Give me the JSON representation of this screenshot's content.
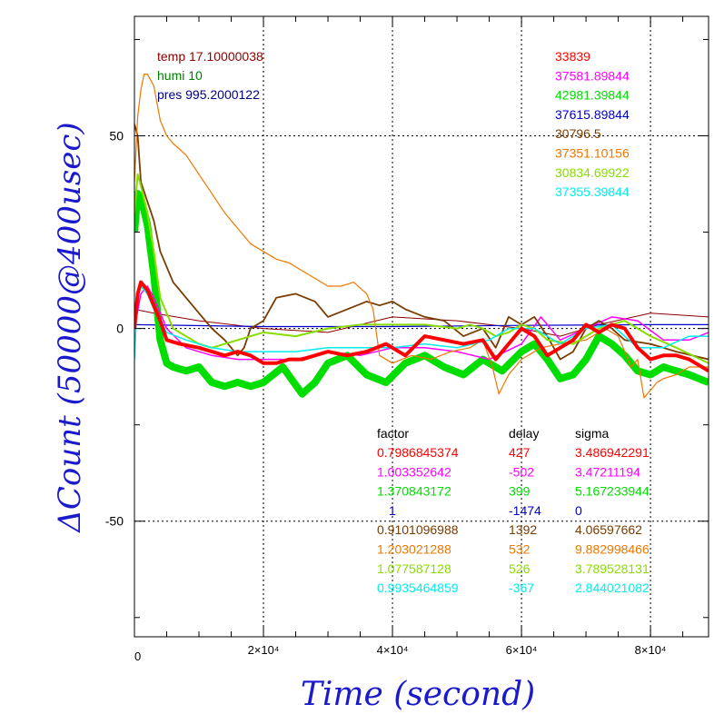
{
  "chart_data": {
    "type": "line",
    "xlabel": "Time (second)",
    "ylabel": "ΔCount (50000@400usec)",
    "xlim": [
      0,
      89000
    ],
    "ylim": [
      -80,
      81
    ],
    "grid": true,
    "x_ticks": [
      {
        "value": 0,
        "label": "0"
      },
      {
        "value": 20000,
        "label": "2×10⁴"
      },
      {
        "value": 40000,
        "label": "4×10⁴"
      },
      {
        "value": 60000,
        "label": "6×10⁴"
      },
      {
        "value": 80000,
        "label": "8×10⁴"
      }
    ],
    "y_ticks": [
      {
        "value": 50,
        "label": "50"
      },
      {
        "value": 0,
        "label": "0"
      },
      {
        "value": -50,
        "label": "-50"
      }
    ],
    "env": [
      {
        "text": "temp 17.10000038",
        "color": "#8b0000"
      },
      {
        "text": "humi 10",
        "color": "#008000"
      },
      {
        "text": "pres 995.2000122",
        "color": "#00008b"
      }
    ],
    "means": [
      {
        "text": "33839",
        "color": "#ff0000"
      },
      {
        "text": "37581.89844",
        "color": "#ff00ff"
      },
      {
        "text": "42981.39844",
        "color": "#00dd00"
      },
      {
        "text": "37615.89844",
        "color": "#0000cc"
      },
      {
        "text": "30796.5",
        "color": "#7a3c00"
      },
      {
        "text": "37351.10156",
        "color": "#ee7700"
      },
      {
        "text": "30834.69922",
        "color": "#88dd00"
      },
      {
        "text": "37355.39844",
        "color": "#00eeee"
      }
    ],
    "table": {
      "headers": [
        "factor",
        "delay",
        "sigma"
      ],
      "rows": [
        {
          "factor": "0.7986845374",
          "delay": "427",
          "sigma": "3.486942291",
          "color": "#ff0000"
        },
        {
          "factor": "1.003352642",
          "delay": "-502",
          "sigma": "3.47211194",
          "color": "#ff00ff"
        },
        {
          "factor": "1.370843172",
          "delay": "399",
          "sigma": "5.167233944",
          "color": "#00dd00"
        },
        {
          "factor": "1",
          "delay": "-1474",
          "sigma": "0",
          "color": "#0000cc"
        },
        {
          "factor": "0.9101096988",
          "delay": "1392",
          "sigma": "4.06597662",
          "color": "#7a3c00"
        },
        {
          "factor": "1.203021288",
          "delay": "532",
          "sigma": "9.882998466",
          "color": "#ee7700"
        },
        {
          "factor": "1.077587128",
          "delay": "526",
          "sigma": "3.789528131",
          "color": "#88dd00"
        },
        {
          "factor": "0.9935464859",
          "delay": "-367",
          "sigma": "2.844021082",
          "color": "#00eeee"
        }
      ]
    },
    "series": [
      {
        "color": "#8b0000",
        "width": 1,
        "x": [
          0,
          3000,
          10000,
          20000,
          30000,
          40000,
          50000,
          60000,
          66000,
          72000,
          80000,
          89000
        ],
        "y": [
          5,
          4,
          2,
          0,
          -1,
          3,
          2,
          0,
          -2,
          1,
          4,
          3
        ]
      },
      {
        "color": "#0000cc",
        "width": 1.2,
        "x": [
          0,
          20000,
          40000,
          60000,
          80000,
          89000
        ],
        "y": [
          1,
          0.5,
          0.5,
          0.8,
          1,
          1
        ]
      },
      {
        "color": "#00dd00",
        "width": 8,
        "x": [
          0,
          500,
          1000,
          2000,
          3000,
          4000,
          5000,
          6000,
          8000,
          10000,
          12000,
          14000,
          16000,
          18000,
          20000,
          23000,
          26000,
          28000,
          30000,
          33000,
          36000,
          39000,
          42000,
          45000,
          48000,
          51000,
          54000,
          57000,
          60000,
          62000,
          64000,
          66000,
          68000,
          70000,
          72000,
          74000,
          76000,
          78000,
          80000,
          82000,
          84000,
          86000,
          89000
        ],
        "y": [
          25,
          35,
          34,
          27,
          14,
          -3,
          -9,
          -10,
          -11,
          -10,
          -14,
          -15,
          -14,
          -15,
          -14,
          -10,
          -17,
          -14,
          -9,
          -7,
          -12,
          -14,
          -9,
          -7,
          -10,
          -12,
          -8,
          -11,
          -6,
          -4,
          -8,
          -13,
          -12,
          -8,
          -2,
          -4,
          -7,
          -11,
          -12,
          -10,
          -11,
          -12,
          -14
        ]
      },
      {
        "color": "#ff00ff",
        "width": 1.5,
        "x": [
          0,
          1000,
          2000,
          3000,
          5000,
          8000,
          12000,
          16000,
          20000,
          25000,
          30000,
          35000,
          40000,
          45000,
          50000,
          55000,
          60000,
          63000,
          66000,
          70000,
          74000,
          78000,
          82000,
          86000,
          89000
        ],
        "y": [
          0,
          9,
          11,
          8,
          0,
          -5,
          -7,
          -8,
          -8,
          -8,
          -6,
          -7,
          -5,
          -5,
          -6,
          -8,
          -4,
          3,
          -3,
          0,
          3,
          2,
          -3,
          -3,
          -1
        ]
      },
      {
        "color": "#7a3c00",
        "width": 1.8,
        "x": [
          0,
          500,
          1000,
          2000,
          3000,
          4000,
          6000,
          8000,
          10000,
          12000,
          14000,
          16000,
          17000,
          18000,
          20000,
          22000,
          25000,
          28000,
          30000,
          33000,
          36000,
          38000,
          40000,
          42000,
          45000,
          48000,
          51000,
          54000,
          56000,
          58000,
          60000,
          62000,
          64000,
          66000,
          68000,
          70000,
          72000,
          74000,
          76000,
          80000,
          84000,
          89000
        ],
        "y": [
          53,
          50,
          38,
          33,
          28,
          20,
          12,
          8,
          4,
          0,
          -3,
          -7,
          -5,
          0,
          2,
          8,
          9,
          7,
          3,
          5,
          7,
          6,
          7,
          5,
          3,
          2,
          -2,
          0,
          -5,
          3,
          1,
          3,
          -2,
          -8,
          -6,
          0,
          2,
          0,
          -3,
          -4,
          -6,
          -8
        ]
      },
      {
        "color": "#ee7700",
        "width": 1.2,
        "x": [
          0,
          500,
          1000,
          1500,
          2000,
          3000,
          4000,
          5000,
          6000,
          8000,
          10000,
          12000,
          14000,
          16000,
          18000,
          20000,
          22000,
          24000,
          26000,
          28000,
          30000,
          32000,
          34000,
          36000,
          37000,
          38000,
          40000,
          43000,
          46000,
          49000,
          52000,
          54000,
          55500,
          56500,
          58000,
          60000,
          63000,
          66000,
          70000,
          73000,
          75000,
          77000,
          78000,
          79000,
          80000,
          81000,
          82000,
          84000,
          86000,
          89000
        ],
        "y": [
          38,
          55,
          62,
          66,
          66,
          63,
          54,
          50,
          48,
          45,
          40,
          35,
          30,
          26,
          22,
          20,
          18,
          17,
          15,
          13,
          11,
          11,
          12,
          9,
          5,
          -7,
          -9,
          -7,
          -8,
          -6,
          -5,
          -3,
          -10,
          -17,
          -12,
          -8,
          -5,
          -4,
          -3,
          0,
          -2,
          -10,
          -8,
          -18,
          -16,
          -14,
          -13,
          -12,
          -10,
          -10
        ]
      },
      {
        "color": "#88dd00",
        "width": 2,
        "x": [
          0,
          500,
          1000,
          2000,
          3000,
          4000,
          6000,
          8000,
          10000,
          12000,
          14000,
          16000,
          18000,
          20000,
          25000,
          30000,
          35000,
          40000,
          45000,
          50000,
          52000,
          54000,
          56000,
          58000,
          60000,
          62000,
          64000,
          68000,
          72000,
          76000,
          80000,
          84000,
          89000
        ],
        "y": [
          30,
          40,
          37,
          30,
          20,
          8,
          0,
          -2,
          -4,
          -5,
          -4,
          -3,
          -2,
          -1,
          -2,
          0,
          1,
          1,
          1,
          0,
          1,
          0,
          -2,
          -1,
          1,
          0,
          -3,
          -4,
          0,
          2,
          -2,
          -5,
          -9
        ]
      },
      {
        "color": "#00eeee",
        "width": 1.5,
        "x": [
          0,
          500,
          1000,
          2000,
          3000,
          5000,
          8000,
          12000,
          16000,
          20000,
          25000,
          30000,
          35000,
          40000,
          45000,
          50000,
          55000,
          58000,
          62000,
          66000,
          70000,
          74000,
          78000,
          82000,
          86000,
          89000
        ],
        "y": [
          -8,
          10,
          11,
          9,
          5,
          -1,
          -3,
          -5,
          -6,
          -6,
          -6,
          -5,
          -5,
          -5,
          -4,
          -5,
          -3,
          0,
          0,
          -4,
          0,
          1,
          -5,
          -5,
          -2,
          -2
        ]
      },
      {
        "color": "#ff0000",
        "width": 4,
        "x": [
          0,
          500,
          1000,
          2000,
          3000,
          4000,
          5000,
          7000,
          10000,
          12000,
          14000,
          16000,
          18000,
          20000,
          22000,
          24000,
          26000,
          28000,
          30000,
          33000,
          36000,
          39000,
          42000,
          45000,
          48000,
          51000,
          54000,
          56000,
          58000,
          60000,
          62000,
          64000,
          66000,
          68000,
          70000,
          72000,
          74000,
          76000,
          78000,
          80000,
          82000,
          84000,
          86000,
          89000
        ],
        "y": [
          0,
          9,
          12,
          10,
          6,
          2,
          -3,
          -4,
          -5,
          -6,
          -7,
          -6,
          -7,
          -9,
          -9,
          -8,
          -8,
          -7,
          -6,
          -7,
          -6,
          -4,
          -7,
          -2,
          -3,
          -4,
          -3,
          -8,
          -4,
          0,
          -2,
          -7,
          -5,
          -3,
          1,
          -1,
          1,
          0,
          -5,
          -8,
          -7,
          -7,
          -8,
          -11
        ]
      }
    ]
  }
}
